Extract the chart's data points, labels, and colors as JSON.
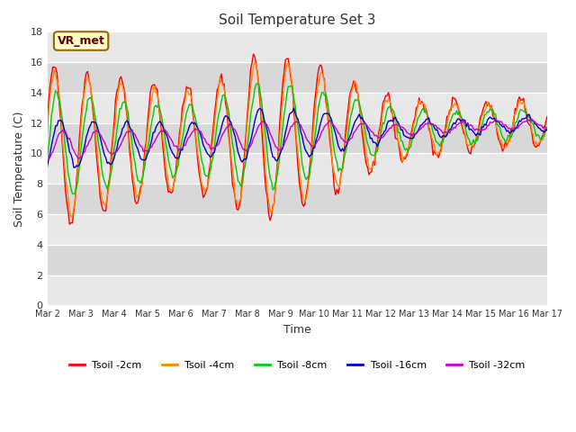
{
  "title": "Soil Temperature Set 3",
  "xlabel": "Time",
  "ylabel": "Soil Temperature (C)",
  "ylim": [
    0,
    18
  ],
  "yticks": [
    0,
    2,
    4,
    6,
    8,
    10,
    12,
    14,
    16,
    18
  ],
  "xtick_labels": [
    "Mar 2",
    "Mar 3",
    "Mar 4",
    "Mar 5",
    "Mar 6",
    "Mar 7",
    "Mar 8",
    "Mar 9",
    "Mar 10",
    "Mar 11",
    "Mar 12",
    "Mar 13",
    "Mar 14",
    "Mar 15",
    "Mar 16",
    "Mar 17"
  ],
  "series": [
    {
      "label": "Tsoil -2cm",
      "color": "#ff0000"
    },
    {
      "label": "Tsoil -4cm",
      "color": "#ff8800"
    },
    {
      "label": "Tsoil -8cm",
      "color": "#00cc00"
    },
    {
      "label": "Tsoil -16cm",
      "color": "#0000cc"
    },
    {
      "label": "Tsoil -32cm",
      "color": "#cc00cc"
    }
  ],
  "annotation_text": "VR_met",
  "annotation_bbox_facecolor": "#ffffcc",
  "annotation_bbox_edgecolor": "#996600",
  "plot_bg_color": "#d8d8d8",
  "n_days": 15,
  "points_per_day": 24
}
